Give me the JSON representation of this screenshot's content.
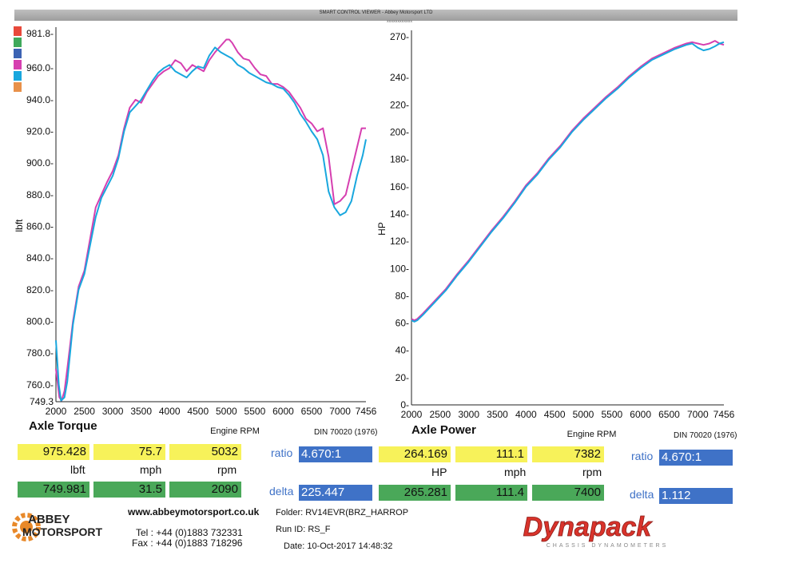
{
  "header": {
    "title": "SMART CONTROL VIEWER - Abbey Motorsport LTD",
    "sub": "XXXXXXXXXXXX"
  },
  "legend": {
    "colors": [
      "#e8493b",
      "#3fa95b",
      "#3c63b3",
      "#d63fb0",
      "#19a7de",
      "#e8914a"
    ]
  },
  "torque": {
    "title": "Axle Torque",
    "note": "DIN 70020 (1976)",
    "yellow": {
      "values": [
        "975.428",
        "75.7",
        "5032"
      ],
      "units": [
        "lbft",
        "mph",
        "rpm"
      ]
    },
    "green": {
      "values": [
        "749.981",
        "31.5",
        "2090"
      ]
    },
    "ratio_label": "ratio",
    "ratio_value": "4.670:1",
    "delta_label": "delta",
    "delta_value": "225.447"
  },
  "power": {
    "title": "Axle Power",
    "note": "DIN 70020 (1976)",
    "yellow": {
      "values": [
        "264.169",
        "111.1",
        "7382"
      ],
      "units": [
        "HP",
        "mph",
        "rpm"
      ]
    },
    "green": {
      "values": [
        "265.281",
        "111.4",
        "7400"
      ]
    },
    "ratio_label": "ratio",
    "ratio_value": "4.670:1",
    "delta_label": "delta",
    "delta_value": "1.112"
  },
  "footer": {
    "website": "www.abbeymotorsport.co.uk",
    "tel": "Tel : +44 (0)1883 732331",
    "fax": "Fax : +44 (0)1883 718296",
    "folder": "Folder:  RV14EVR(BRZ_HARROP",
    "run": "Run ID:  RS_F",
    "date": "Date:  10-Oct-2017  14:48:32",
    "abbey_logo": [
      "ABBEY",
      "MOTORSPORT"
    ],
    "dyna_logo": "Dynapack",
    "dyna_sub": "CHASSIS DYNAMOMETERS"
  },
  "chart_data": [
    {
      "type": "line",
      "xlabel": "Engine RPM",
      "ylabel": "lbft",
      "xlim": [
        2000,
        7456
      ],
      "ylim": [
        749.3,
        981.8
      ],
      "xticks": [
        "2000",
        "2500",
        "3000",
        "3500",
        "4000",
        "4500",
        "5000",
        "5500",
        "6000",
        "6500",
        "7000",
        "7456"
      ],
      "yticks": [
        "749.3",
        "760.0-",
        "780.0-",
        "800.0-",
        "820.0-",
        "840.0-",
        "860.0-",
        "880.0-",
        "900.0-",
        "920.0-",
        "940.0-",
        "960.0-",
        "981.8-"
      ],
      "series": [
        {
          "color": "#d63fb0",
          "x": [
            2000,
            2060,
            2100,
            2150,
            2200,
            2300,
            2400,
            2500,
            2600,
            2700,
            2800,
            2900,
            3000,
            3100,
            3200,
            3300,
            3400,
            3500,
            3600,
            3700,
            3800,
            3900,
            4000,
            4100,
            4200,
            4300,
            4400,
            4500,
            4600,
            4700,
            4800,
            4900,
            5000,
            5050,
            5100,
            5200,
            5300,
            5400,
            5500,
            5600,
            5700,
            5800,
            5900,
            6000,
            6100,
            6200,
            6300,
            6400,
            6500,
            6600,
            6700,
            6800,
            6900,
            7000,
            7100,
            7200,
            7300,
            7380,
            7456
          ],
          "y": [
            770,
            752,
            750,
            756,
            770,
            800,
            822,
            832,
            852,
            872,
            880,
            888,
            895,
            905,
            922,
            935,
            940,
            938,
            945,
            950,
            955,
            958,
            960,
            965,
            963,
            958,
            962,
            960,
            958,
            965,
            970,
            974,
            978,
            978,
            976,
            970,
            966,
            965,
            960,
            956,
            955,
            950,
            950,
            948,
            945,
            940,
            935,
            928,
            925,
            920,
            922,
            904,
            874,
            876,
            880,
            895,
            910,
            922,
            922
          ]
        },
        {
          "color": "#19a7de",
          "x": [
            2000,
            2050,
            2090,
            2150,
            2200,
            2300,
            2400,
            2500,
            2600,
            2700,
            2800,
            2900,
            3000,
            3100,
            3200,
            3300,
            3400,
            3500,
            3600,
            3700,
            3800,
            3900,
            4000,
            4100,
            4200,
            4300,
            4400,
            4500,
            4600,
            4700,
            4800,
            4900,
            5000,
            5100,
            5200,
            5300,
            5400,
            5500,
            5600,
            5700,
            5800,
            5900,
            6000,
            6100,
            6200,
            6300,
            6400,
            6500,
            6600,
            6700,
            6800,
            6900,
            7000,
            7100,
            7200,
            7300,
            7400,
            7456
          ],
          "y": [
            788,
            760,
            750,
            752,
            762,
            798,
            820,
            830,
            848,
            866,
            878,
            885,
            892,
            903,
            920,
            932,
            936,
            940,
            946,
            952,
            957,
            960,
            962,
            958,
            956,
            954,
            958,
            961,
            960,
            968,
            973,
            970,
            968,
            966,
            962,
            960,
            957,
            955,
            953,
            951,
            950,
            948,
            947,
            943,
            938,
            931,
            926,
            920,
            915,
            905,
            882,
            872,
            867,
            869,
            876,
            892,
            905,
            915
          ]
        }
      ]
    },
    {
      "type": "line",
      "xlabel": "Engine RPM",
      "ylabel": "HP",
      "xlim": [
        2000,
        7456
      ],
      "ylim": [
        0,
        270
      ],
      "xticks": [
        "2000",
        "2500",
        "3000",
        "3500",
        "4000",
        "4500",
        "5000",
        "5500",
        "6000",
        "6500",
        "7000",
        "7456"
      ],
      "yticks": [
        "0-",
        "20-",
        "40-",
        "60-",
        "80-",
        "100-",
        "120-",
        "140-",
        "160-",
        "180-",
        "200-",
        "220-",
        "240-",
        "270-"
      ],
      "series": [
        {
          "color": "#d63fb0",
          "x": [
            2000,
            2050,
            2100,
            2200,
            2400,
            2600,
            2800,
            3000,
            3200,
            3400,
            3600,
            3800,
            4000,
            4200,
            4400,
            4600,
            4800,
            5000,
            5200,
            5400,
            5600,
            5800,
            6000,
            6200,
            6400,
            6600,
            6800,
            6900,
            7000,
            7100,
            7200,
            7300,
            7380,
            7456
          ],
          "y": [
            63,
            62,
            63,
            67,
            76,
            85,
            96,
            106,
            117,
            128,
            138,
            149,
            161,
            170,
            181,
            190,
            201,
            210,
            218,
            226,
            233,
            241,
            248,
            254,
            258,
            262,
            265,
            266,
            265,
            264,
            265,
            267,
            265,
            264
          ]
        },
        {
          "color": "#19a7de",
          "x": [
            2000,
            2050,
            2100,
            2200,
            2400,
            2600,
            2800,
            3000,
            3200,
            3400,
            3600,
            3800,
            4000,
            4200,
            4400,
            4600,
            4800,
            5000,
            5200,
            5400,
            5600,
            5800,
            6000,
            6200,
            6400,
            6600,
            6800,
            6900,
            7000,
            7100,
            7200,
            7300,
            7380,
            7456
          ],
          "y": [
            62,
            61,
            62,
            66,
            75,
            84,
            95,
            105,
            116,
            127,
            137,
            148,
            160,
            169,
            180,
            189,
            200,
            209,
            217,
            225,
            232,
            240,
            247,
            253,
            257,
            261,
            264,
            265,
            262,
            260,
            261,
            263,
            265,
            266
          ]
        }
      ]
    }
  ]
}
